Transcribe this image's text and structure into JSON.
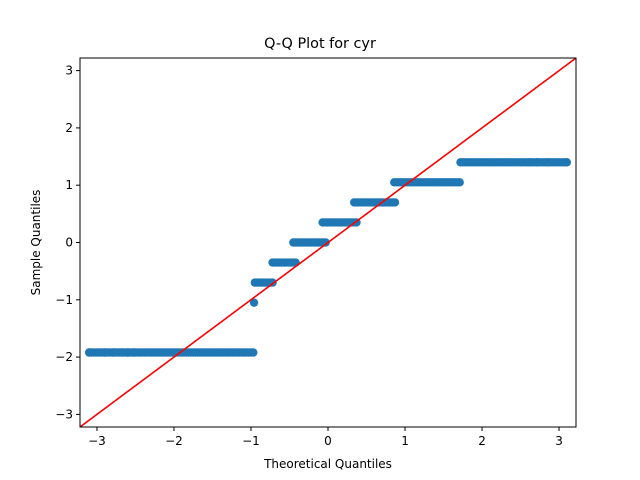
{
  "chart_data": {
    "type": "scatter",
    "title": "Q-Q Plot for cyr",
    "xlabel": "Theoretical Quantiles",
    "ylabel": "Sample Quantiles",
    "xlim": [
      -3.22,
      3.22
    ],
    "ylim": [
      -3.22,
      3.22
    ],
    "xticks": [
      -3,
      -2,
      -1,
      0,
      1,
      2,
      3
    ],
    "yticks": [
      -3,
      -2,
      -1,
      0,
      1,
      2,
      3
    ],
    "grid": false,
    "marker_color": "#1f77b4",
    "line_color": "#ff0000",
    "reference_line": {
      "slope": 1,
      "intercept": 0
    },
    "steps": [
      {
        "y": -1.92,
        "x_start": -3.1,
        "x_end": -0.97,
        "isolated_x": [
          -3.1,
          -2.9,
          -2.78,
          -2.68,
          -2.6,
          -2.52
        ]
      },
      {
        "y": -1.05,
        "x_start": -0.96,
        "x_end": -0.96,
        "isolated_x": []
      },
      {
        "y": -0.7,
        "x_start": -0.95,
        "x_end": -0.72,
        "isolated_x": []
      },
      {
        "y": -0.35,
        "x_start": -0.72,
        "x_end": -0.42,
        "isolated_x": []
      },
      {
        "y": 0.0,
        "x_start": -0.45,
        "x_end": -0.03,
        "isolated_x": []
      },
      {
        "y": 0.35,
        "x_start": -0.07,
        "x_end": 0.37,
        "isolated_x": []
      },
      {
        "y": 0.7,
        "x_start": 0.34,
        "x_end": 0.87,
        "isolated_x": []
      },
      {
        "y": 1.05,
        "x_start": 0.86,
        "x_end": 1.71,
        "isolated_x": []
      },
      {
        "y": 1.4,
        "x_start": 1.72,
        "x_end": 3.1,
        "isolated_x": [
          2.62,
          2.72,
          2.86,
          3.1
        ]
      }
    ]
  }
}
